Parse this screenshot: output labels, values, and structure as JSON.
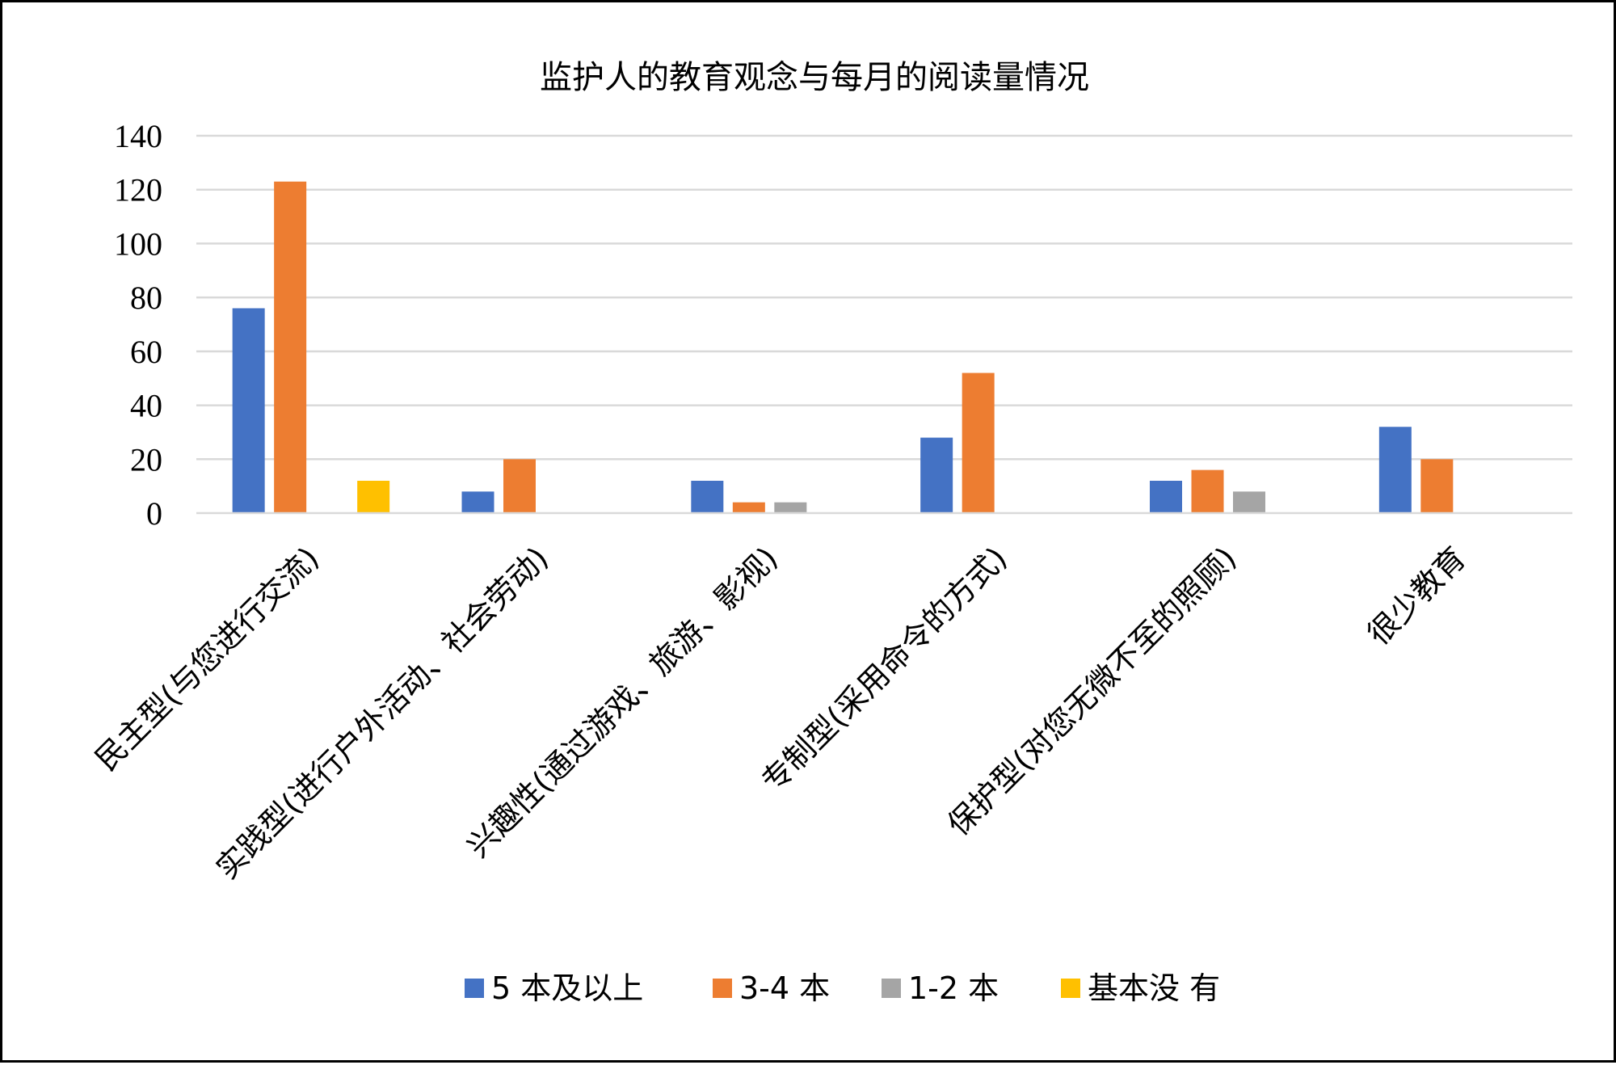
{
  "chart_data": {
    "type": "bar",
    "title": "监护人的教育观念与每月的阅读量情况",
    "xlabel": "",
    "ylabel": "",
    "ylim": [
      0,
      140
    ],
    "yticks": [
      0,
      20,
      40,
      60,
      80,
      100,
      120,
      140
    ],
    "grid": true,
    "legend_position": "bottom",
    "categories": [
      "民主型(与您进行交流)",
      "实践型(进行户外活动、社会劳动)",
      "兴趣性(通过游戏、旅游、影视)",
      "专制型(采用命令的方式)",
      "保护型(对您无微不至的照顾)",
      "很少教育"
    ],
    "series": [
      {
        "name": "5 本及以上",
        "color": "#4472c4",
        "values": [
          76,
          8,
          12,
          28,
          12,
          32
        ]
      },
      {
        "name": "3-4 本",
        "color": "#ed7d31",
        "values": [
          123,
          20,
          4,
          52,
          16,
          20
        ]
      },
      {
        "name": "1-2 本",
        "color": "#a5a5a5",
        "values": [
          0,
          0,
          4,
          0,
          8,
          0
        ]
      },
      {
        "name": "基本没 有",
        "color": "#ffc000",
        "values": [
          12,
          0,
          0,
          0,
          0,
          0
        ]
      }
    ]
  }
}
